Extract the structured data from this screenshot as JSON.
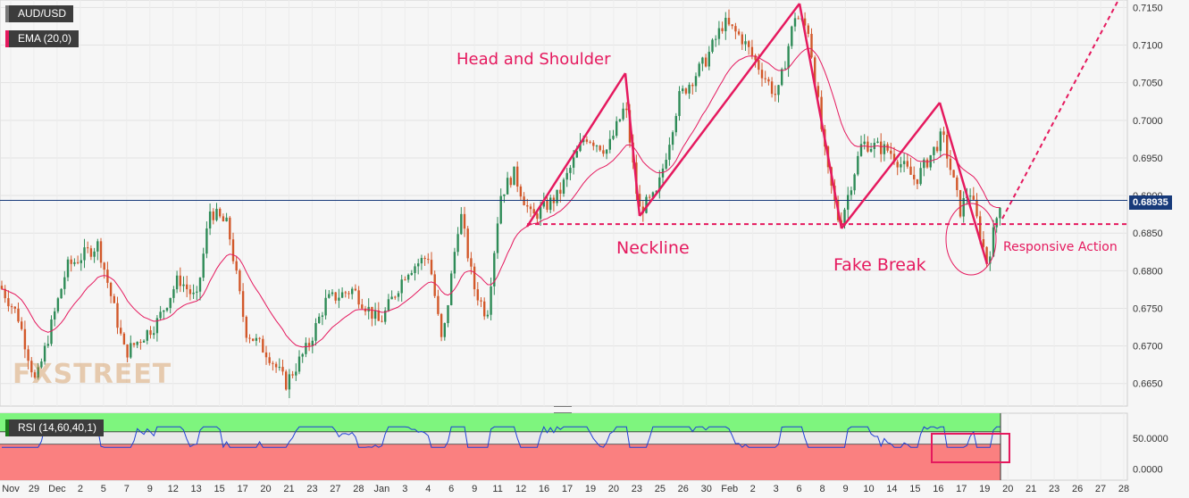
{
  "chart_data": {
    "type": "candlestick",
    "symbol": "AUD/USD",
    "indicator_ema": "EMA (20,0)",
    "indicator_rsi": "RSI (14,60,40,1)",
    "current_price": "0.68935",
    "price_axis": {
      "ylim": [
        0.662,
        0.716
      ],
      "ticks": [
        "0.7150",
        "0.7100",
        "0.7050",
        "0.7000",
        "0.6950",
        "0.6900",
        "0.6850",
        "0.6800",
        "0.6750",
        "0.6700",
        "0.6650"
      ]
    },
    "rsi_axis": {
      "ylim": [
        -18,
        90
      ],
      "ticks": [
        "50.0000",
        "0.0000"
      ],
      "upper_band": 60,
      "lower_band": 40
    },
    "x_labels": [
      "Nov",
      "29",
      "Dec",
      "2",
      "5",
      "7",
      "9",
      "12",
      "13",
      "15",
      "17",
      "20",
      "21",
      "23",
      "27",
      "28",
      "Jan",
      "3",
      "4",
      "6",
      "9",
      "11",
      "12",
      "16",
      "17",
      "19",
      "20",
      "23",
      "25",
      "26",
      "30",
      "Feb",
      "2",
      "3",
      "6",
      "8",
      "9",
      "10",
      "14",
      "15",
      "16",
      "17",
      "19",
      "20",
      "21",
      "23",
      "26",
      "27",
      "28"
    ],
    "annotations": {
      "head_and_shoulder": "Head and Shoulder",
      "neckline": "Neckline",
      "fake_break": "Fake Break",
      "responsive_action": "Responsive Action"
    },
    "neckline_level": 0.6862,
    "colors": {
      "up": "#2e8b57",
      "down": "#d2582a",
      "ema": "#e5195e",
      "annotation": "#e5195e",
      "price_line": "#173a7a"
    }
  },
  "watermark": "FXSTREET",
  "icons": {
    "panel_resize": "drag-handle-icon"
  }
}
